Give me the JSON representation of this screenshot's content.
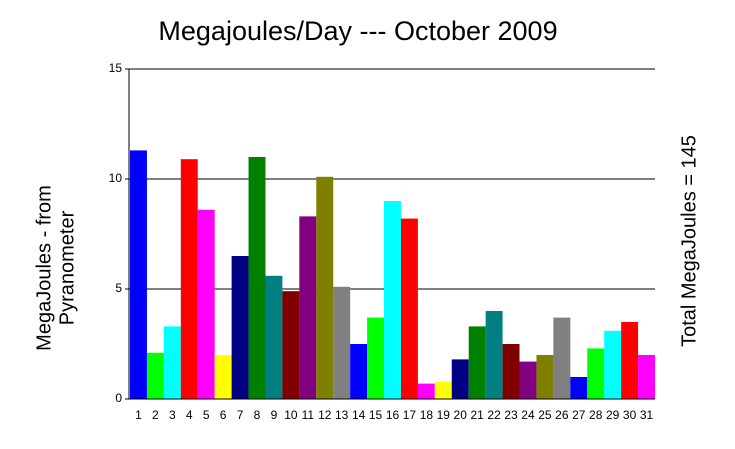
{
  "chart_data": {
    "type": "bar",
    "title": "Megajoules/Day --- October 2009",
    "ylabel": [
      "MegaJoules - from",
      "Pyranometer"
    ],
    "annotation": "Total MegaJoules = 145",
    "categories": [
      "1",
      "2",
      "3",
      "4",
      "5",
      "6",
      "7",
      "8",
      "9",
      "10",
      "11",
      "12",
      "13",
      "14",
      "15",
      "16",
      "17",
      "18",
      "19",
      "20",
      "21",
      "22",
      "23",
      "24",
      "25",
      "26",
      "27",
      "28",
      "29",
      "30",
      "31"
    ],
    "values": [
      11.3,
      2.1,
      3.3,
      10.9,
      8.6,
      2.0,
      6.5,
      11.0,
      5.6,
      4.9,
      8.3,
      10.1,
      5.1,
      2.5,
      3.7,
      9.0,
      8.2,
      0.7,
      0.8,
      1.8,
      3.3,
      4.0,
      2.5,
      1.7,
      2.0,
      3.7,
      1.0,
      2.3,
      3.1,
      3.5,
      2.0
    ],
    "colors": [
      "#0000ff",
      "#00ff00",
      "#00ffff",
      "#ff0000",
      "#ff00ff",
      "#ffff00",
      "#000080",
      "#008000",
      "#008080",
      "#800000",
      "#800080",
      "#808000",
      "#808080",
      "#0000ff",
      "#00ff00",
      "#00ffff",
      "#ff0000",
      "#ff00ff",
      "#ffff00",
      "#000080",
      "#008000",
      "#008080",
      "#800000",
      "#800080",
      "#808000",
      "#808080",
      "#0000ff",
      "#00ff00",
      "#00ffff",
      "#ff0000",
      "#ff00ff"
    ],
    "ylim": [
      0,
      15
    ],
    "yticks": [
      0,
      5,
      10,
      15
    ],
    "grid": true
  }
}
